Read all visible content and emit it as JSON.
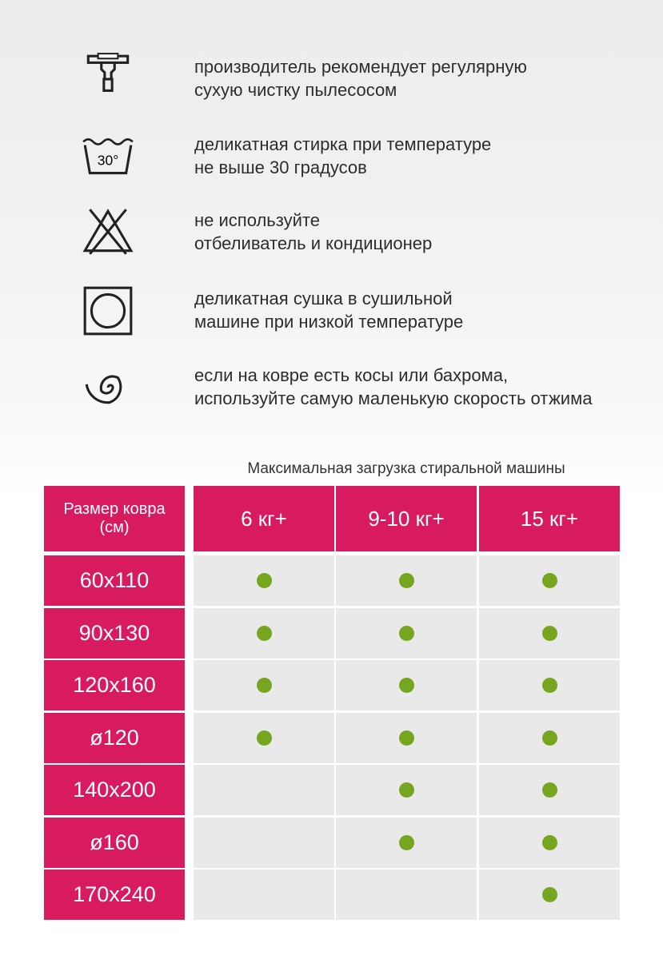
{
  "care": [
    {
      "icon_text": null,
      "lines": [
        "производитель рекомендует регулярную",
        "сухую чистку пылесосом"
      ]
    },
    {
      "icon_text": "30°",
      "lines": [
        "деликатная стирка при температуре",
        "не выше 30 градусов"
      ]
    },
    {
      "icon_text": null,
      "lines": [
        "не используйте",
        "отбеливатель и кондиционер"
      ]
    },
    {
      "icon_text": null,
      "lines": [
        "деликатная сушка в сушильной",
        "машине при низкой температуре"
      ]
    },
    {
      "icon_text": null,
      "lines": [
        "если на ковре есть косы или бахрома,",
        "используйте самую маленькую скорость отжима"
      ]
    }
  ],
  "table": {
    "caption": "Максимальная загрузка стиральной машины",
    "corner": [
      "Размер ковра",
      "(см)"
    ],
    "columns": [
      "6 кг+",
      "9-10 кг+",
      "15 кг+"
    ],
    "rows": [
      {
        "size": "60x110",
        "fits": [
          true,
          true,
          true
        ]
      },
      {
        "size": "90x130",
        "fits": [
          true,
          true,
          true
        ]
      },
      {
        "size": "120x160",
        "fits": [
          true,
          true,
          true
        ]
      },
      {
        "size": "ø120",
        "fits": [
          true,
          true,
          true
        ]
      },
      {
        "size": "140x200",
        "fits": [
          false,
          true,
          true
        ]
      },
      {
        "size": "ø160",
        "fits": [
          false,
          true,
          true
        ]
      },
      {
        "size": "170x240",
        "fits": [
          false,
          false,
          true
        ]
      }
    ]
  }
}
